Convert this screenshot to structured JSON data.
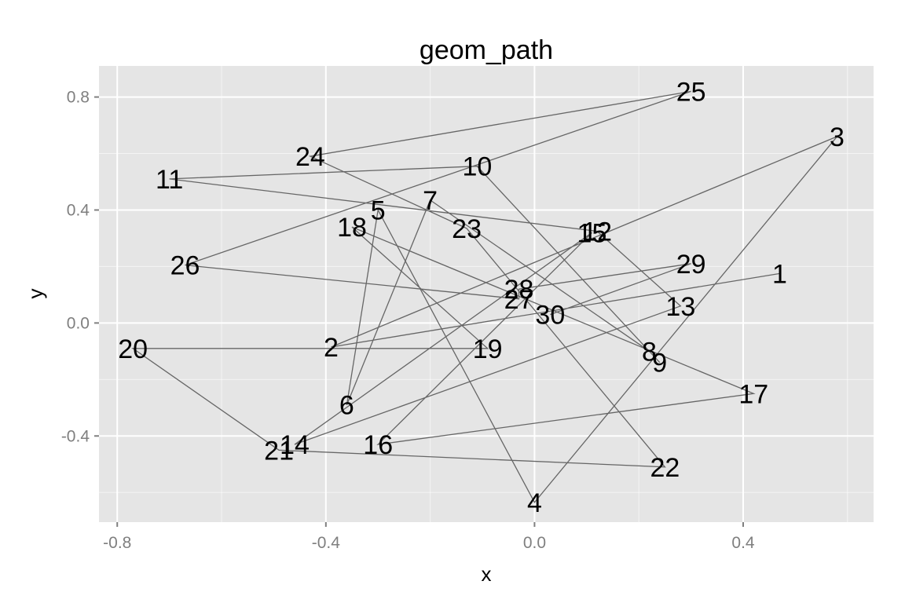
{
  "chart_data": {
    "type": "line",
    "title": "geom_path",
    "xlabel": "x",
    "ylabel": "y",
    "xlim": [
      -0.835,
      0.65
    ],
    "ylim": [
      -0.705,
      0.91
    ],
    "x_ticks": [
      -0.8,
      -0.4,
      0.0,
      0.4
    ],
    "x_tick_labels": [
      "-0.8",
      "-0.4",
      "0.0",
      "0.4"
    ],
    "y_ticks": [
      -0.4,
      0.0,
      0.4,
      0.8
    ],
    "y_tick_labels": [
      "-0.4",
      "0.0",
      "0.4",
      "0.8"
    ],
    "grid": true,
    "background": "#e5e5e5",
    "grid_color": "#ffffff",
    "line_color": "#666666",
    "series": [
      {
        "points": [
          {
            "label": "1",
            "x": 0.47,
            "y": 0.175
          },
          {
            "label": "2",
            "x": -0.39,
            "y": -0.085
          },
          {
            "label": "3",
            "x": 0.58,
            "y": 0.66
          },
          {
            "label": "4",
            "x": 0.0,
            "y": -0.635
          },
          {
            "label": "5",
            "x": -0.3,
            "y": 0.4
          },
          {
            "label": "6",
            "x": -0.36,
            "y": -0.29
          },
          {
            "label": "7",
            "x": -0.2,
            "y": 0.435
          },
          {
            "label": "8",
            "x": 0.22,
            "y": -0.1
          },
          {
            "label": "9",
            "x": 0.24,
            "y": -0.14
          },
          {
            "label": "10",
            "x": -0.11,
            "y": 0.555
          },
          {
            "label": "11",
            "x": -0.7,
            "y": 0.51
          },
          {
            "label": "12",
            "x": 0.12,
            "y": 0.325
          },
          {
            "label": "13",
            "x": 0.28,
            "y": 0.06
          },
          {
            "label": "14",
            "x": -0.46,
            "y": -0.43
          },
          {
            "label": "15",
            "x": 0.11,
            "y": 0.32
          },
          {
            "label": "16",
            "x": -0.3,
            "y": -0.43
          },
          {
            "label": "17",
            "x": 0.42,
            "y": -0.25
          },
          {
            "label": "18",
            "x": -0.35,
            "y": 0.34
          },
          {
            "label": "19",
            "x": -0.09,
            "y": -0.09
          },
          {
            "label": "20",
            "x": -0.77,
            "y": -0.09
          },
          {
            "label": "21",
            "x": -0.49,
            "y": -0.45
          },
          {
            "label": "22",
            "x": 0.25,
            "y": -0.51
          },
          {
            "label": "23",
            "x": -0.13,
            "y": 0.335
          },
          {
            "label": "24",
            "x": -0.43,
            "y": 0.59
          },
          {
            "label": "25",
            "x": 0.3,
            "y": 0.82
          },
          {
            "label": "26",
            "x": -0.67,
            "y": 0.205
          },
          {
            "label": "27",
            "x": -0.03,
            "y": 0.085
          },
          {
            "label": "28",
            "x": -0.03,
            "y": 0.12
          },
          {
            "label": "29",
            "x": 0.3,
            "y": 0.21
          },
          {
            "label": "30",
            "x": 0.03,
            "y": 0.03
          }
        ]
      }
    ]
  }
}
